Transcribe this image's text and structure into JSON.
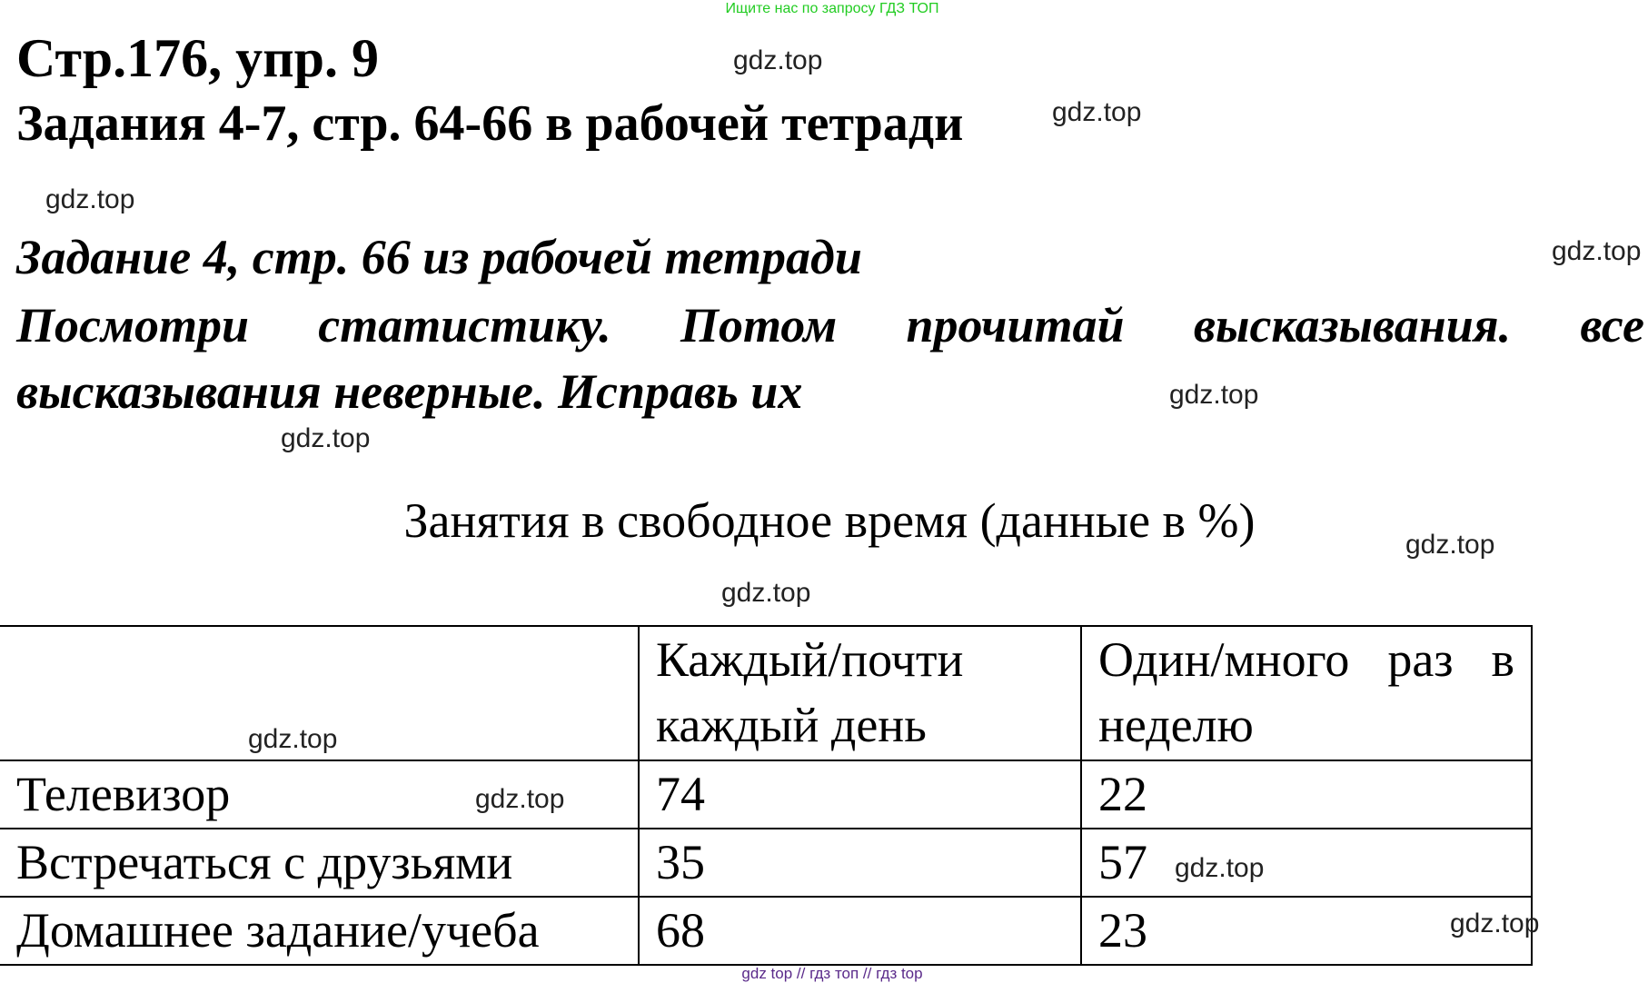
{
  "top_note": "Ищите нас по запросу ГДЗ ТОП",
  "heading": "Стр.176, упр. 9",
  "subheading": "Задания 4-7, стр. 64-66 в рабочей тетради",
  "task_heading": "Задание 4, стр. 66 из рабочей тетради",
  "instruction": "Посмотри статистику. Потом прочитай высказывания. все высказывания неверные. Исправь их",
  "table_title": "Занятия в свободное время (данные в %)",
  "table": {
    "headers": [
      "",
      "Каждый/почти каждый день",
      "Один/много раз в неделю"
    ],
    "rows": [
      [
        "Телевизор",
        "74",
        "22"
      ],
      [
        "Встречаться с друзьями",
        "35",
        "57"
      ],
      [
        "Домашнее задание/учеба",
        "68",
        "23"
      ]
    ]
  },
  "watermark": "gdz.top",
  "footer": "gdz top  //  гдз топ  //  гдз top",
  "colors": {
    "top_note": "#22cc22",
    "footer": "#5a2a8a"
  }
}
